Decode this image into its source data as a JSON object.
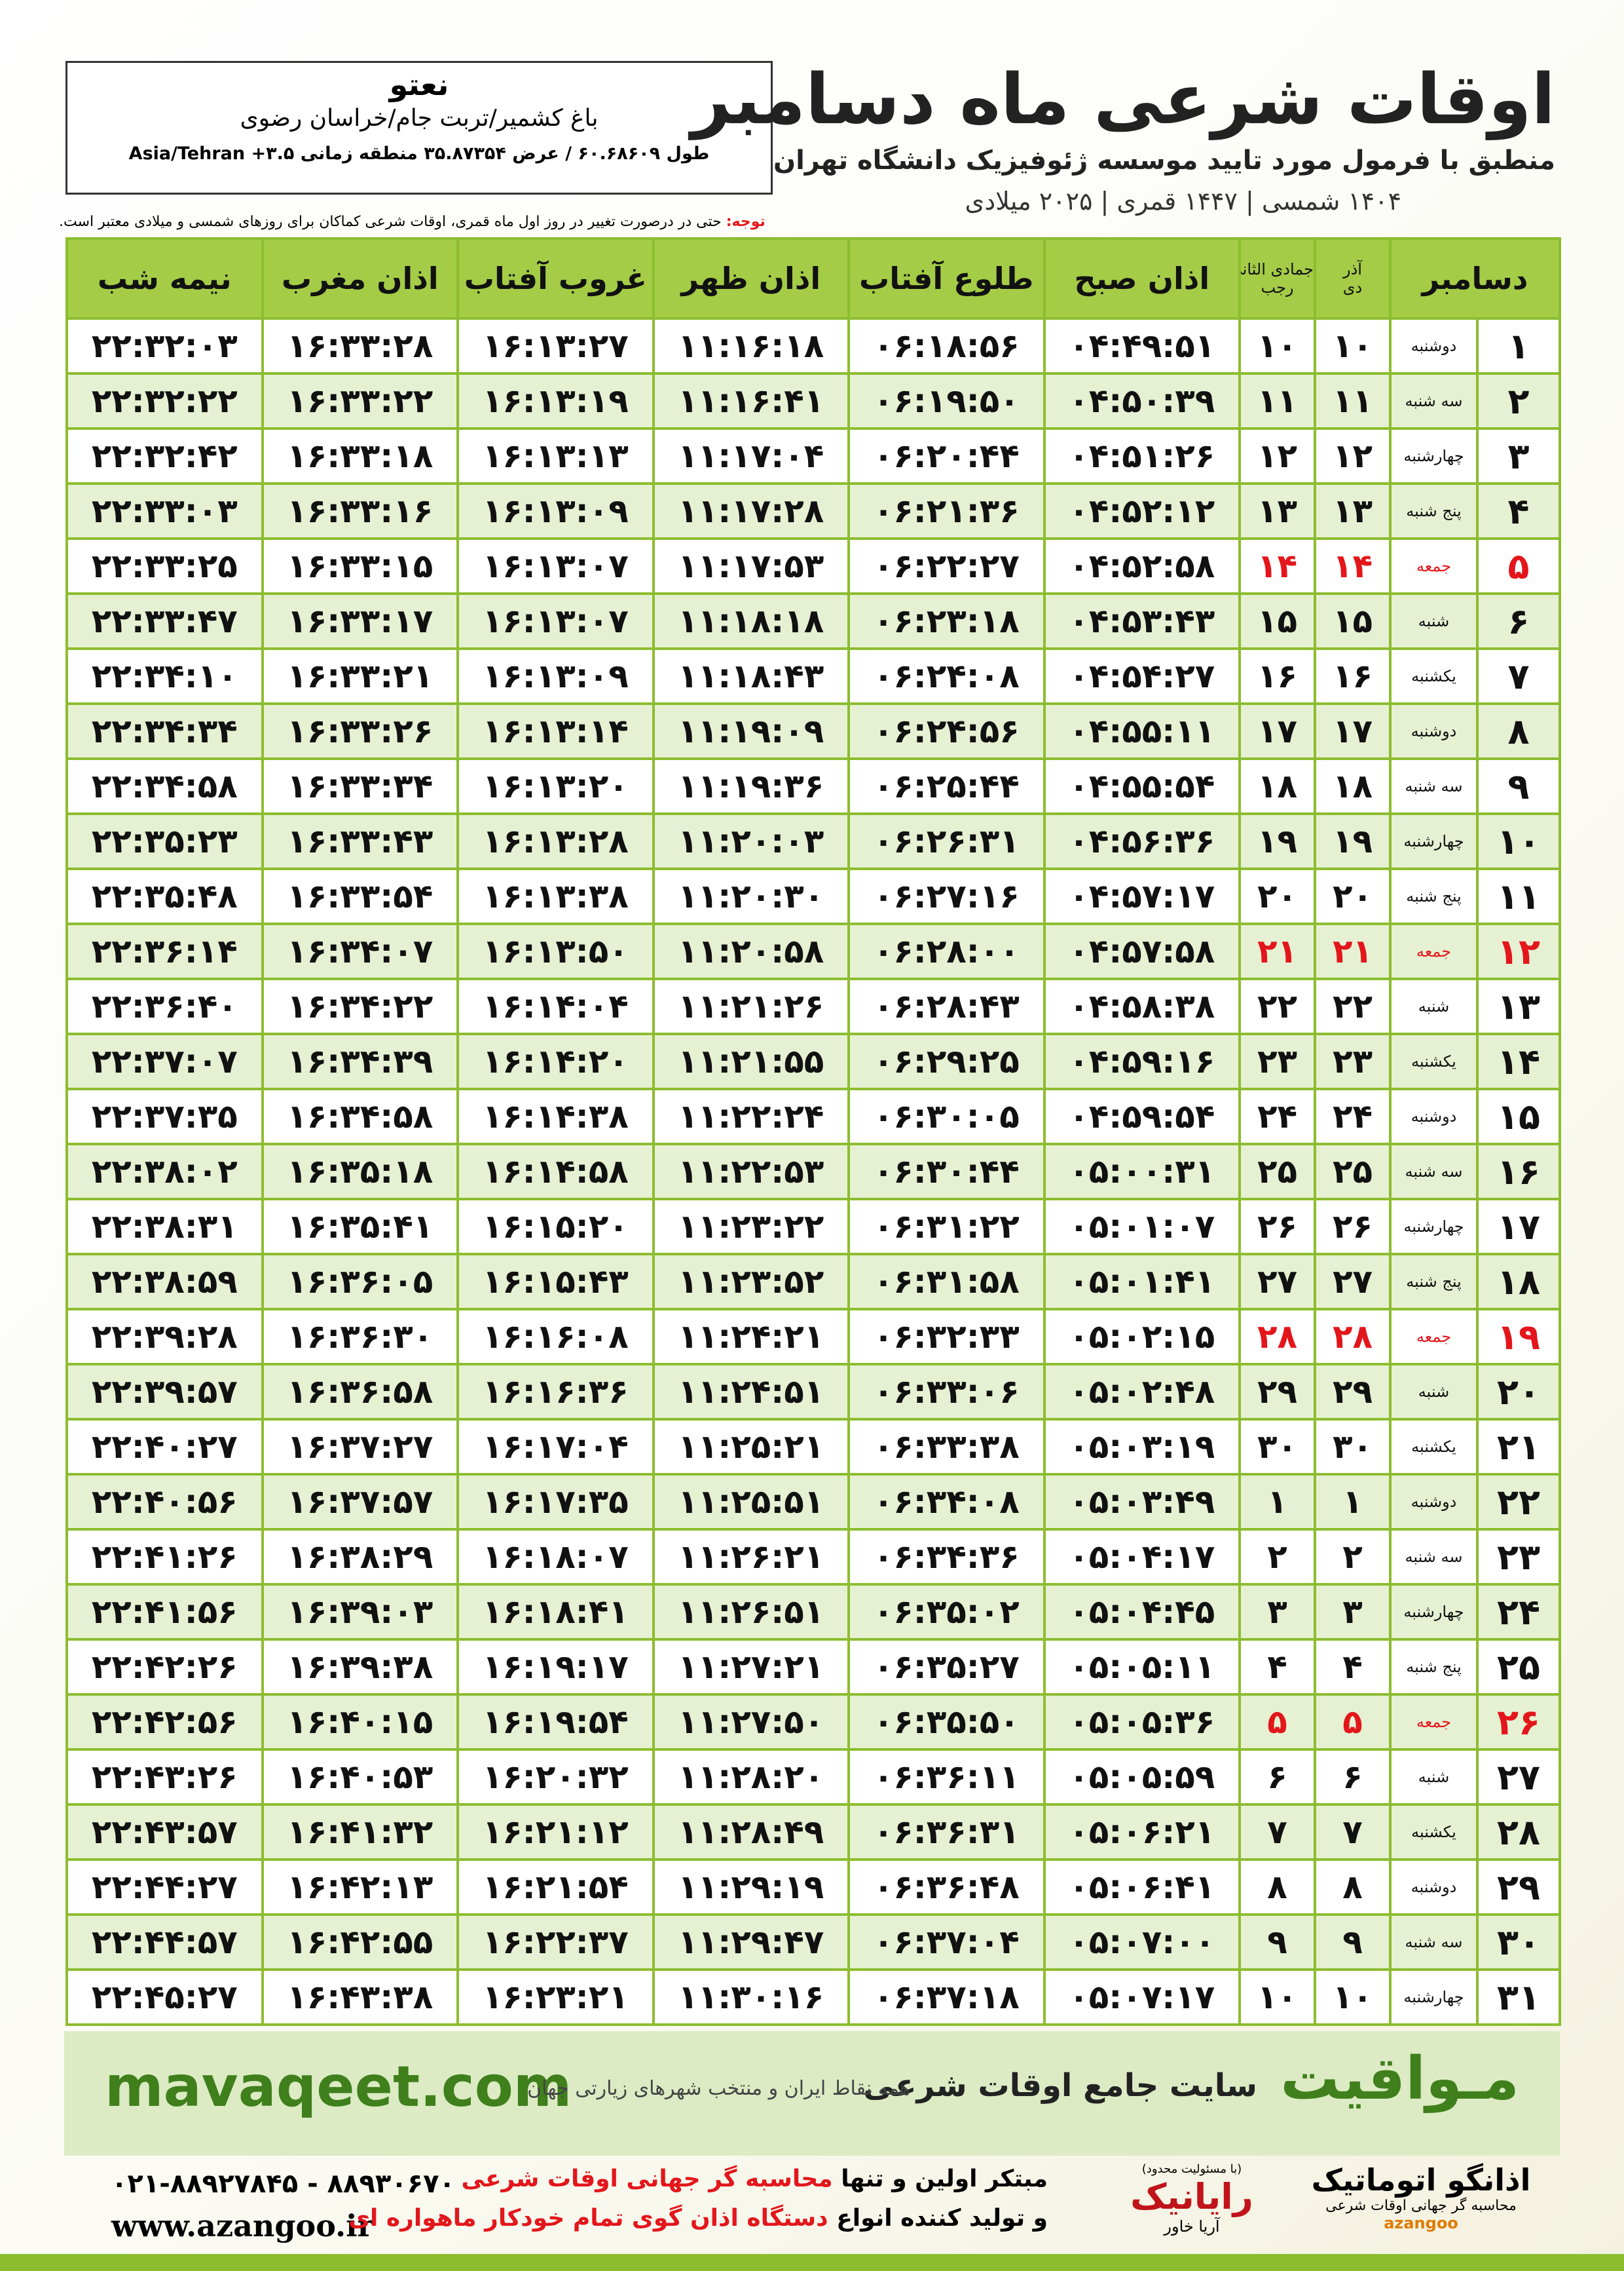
{
  "header": {
    "title": "اوقات شرعی ماه دسامبر",
    "subtitle": "منطبق با فرمول مورد تایید موسسه ژئوفیزیک دانشگاه تهران",
    "dates": "۱۴۰۴ شمسی | ۱۴۴۷ قمری | ۲۰۲۵ میلادی"
  },
  "location": {
    "name": "نعتو",
    "address": "باغ کشمیر/تربت جام/خراسان رضوی",
    "coords": "طول ۶۰.۶۸۶۰۹ / عرض ۳۵.۸۷۳۵۴ منطقه زمانی ۳.۵+ Asia/Tehran"
  },
  "note": {
    "label": "توجه:",
    "text": "حتی در درصورت تغییر در روز اول ماه قمری، اوقات شرعی کماکان برای روزهای شمسی و میلادی معتبر است."
  },
  "table": {
    "columns": {
      "month": "دسامبر",
      "solar": [
        "آذر",
        "دی"
      ],
      "lunar": [
        "جمادی الثانی",
        "رجب"
      ],
      "times": [
        "اذان صبح",
        "طلوع آفتاب",
        "اذان ظهر",
        "غروب آفتاب",
        "اذان مغرب",
        "نیمه شب"
      ]
    },
    "highlight": {
      "weekday": "جمعه",
      "color": "#e3161b"
    },
    "rows": [
      [
        "۱",
        "دوشنبه",
        "۱۰",
        "۱۰",
        "۰۴:۴۹:۵۱",
        "۰۶:۱۸:۵۶",
        "۱۱:۱۶:۱۸",
        "۱۶:۱۳:۲۷",
        "۱۶:۳۳:۲۸",
        "۲۲:۳۲:۰۳"
      ],
      [
        "۲",
        "سه شنبه",
        "۱۱",
        "۱۱",
        "۰۴:۵۰:۳۹",
        "۰۶:۱۹:۵۰",
        "۱۱:۱۶:۴۱",
        "۱۶:۱۳:۱۹",
        "۱۶:۳۳:۲۲",
        "۲۲:۳۲:۲۲"
      ],
      [
        "۳",
        "چهارشنبه",
        "۱۲",
        "۱۲",
        "۰۴:۵۱:۲۶",
        "۰۶:۲۰:۴۴",
        "۱۱:۱۷:۰۴",
        "۱۶:۱۳:۱۳",
        "۱۶:۳۳:۱۸",
        "۲۲:۳۲:۴۲"
      ],
      [
        "۴",
        "پنج شنبه",
        "۱۳",
        "۱۳",
        "۰۴:۵۲:۱۲",
        "۰۶:۲۱:۳۶",
        "۱۱:۱۷:۲۸",
        "۱۶:۱۳:۰۹",
        "۱۶:۳۳:۱۶",
        "۲۲:۳۳:۰۳"
      ],
      [
        "۵",
        "جمعه",
        "۱۴",
        "۱۴",
        "۰۴:۵۲:۵۸",
        "۰۶:۲۲:۲۷",
        "۱۱:۱۷:۵۳",
        "۱۶:۱۳:۰۷",
        "۱۶:۳۳:۱۵",
        "۲۲:۳۳:۲۵"
      ],
      [
        "۶",
        "شنبه",
        "۱۵",
        "۱۵",
        "۰۴:۵۳:۴۳",
        "۰۶:۲۳:۱۸",
        "۱۱:۱۸:۱۸",
        "۱۶:۱۳:۰۷",
        "۱۶:۳۳:۱۷",
        "۲۲:۳۳:۴۷"
      ],
      [
        "۷",
        "یکشنبه",
        "۱۶",
        "۱۶",
        "۰۴:۵۴:۲۷",
        "۰۶:۲۴:۰۸",
        "۱۱:۱۸:۴۳",
        "۱۶:۱۳:۰۹",
        "۱۶:۳۳:۲۱",
        "۲۲:۳۴:۱۰"
      ],
      [
        "۸",
        "دوشنبه",
        "۱۷",
        "۱۷",
        "۰۴:۵۵:۱۱",
        "۰۶:۲۴:۵۶",
        "۱۱:۱۹:۰۹",
        "۱۶:۱۳:۱۴",
        "۱۶:۳۳:۲۶",
        "۲۲:۳۴:۳۴"
      ],
      [
        "۹",
        "سه شنبه",
        "۱۸",
        "۱۸",
        "۰۴:۵۵:۵۴",
        "۰۶:۲۵:۴۴",
        "۱۱:۱۹:۳۶",
        "۱۶:۱۳:۲۰",
        "۱۶:۳۳:۳۴",
        "۲۲:۳۴:۵۸"
      ],
      [
        "۱۰",
        "چهارشنبه",
        "۱۹",
        "۱۹",
        "۰۴:۵۶:۳۶",
        "۰۶:۲۶:۳۱",
        "۱۱:۲۰:۰۳",
        "۱۶:۱۳:۲۸",
        "۱۶:۳۳:۴۳",
        "۲۲:۳۵:۲۳"
      ],
      [
        "۱۱",
        "پنج شنبه",
        "۲۰",
        "۲۰",
        "۰۴:۵۷:۱۷",
        "۰۶:۲۷:۱۶",
        "۱۱:۲۰:۳۰",
        "۱۶:۱۳:۳۸",
        "۱۶:۳۳:۵۴",
        "۲۲:۳۵:۴۸"
      ],
      [
        "۱۲",
        "جمعه",
        "۲۱",
        "۲۱",
        "۰۴:۵۷:۵۸",
        "۰۶:۲۸:۰۰",
        "۱۱:۲۰:۵۸",
        "۱۶:۱۳:۵۰",
        "۱۶:۳۴:۰۷",
        "۲۲:۳۶:۱۴"
      ],
      [
        "۱۳",
        "شنبه",
        "۲۲",
        "۲۲",
        "۰۴:۵۸:۳۸",
        "۰۶:۲۸:۴۳",
        "۱۱:۲۱:۲۶",
        "۱۶:۱۴:۰۴",
        "۱۶:۳۴:۲۲",
        "۲۲:۳۶:۴۰"
      ],
      [
        "۱۴",
        "یکشنبه",
        "۲۳",
        "۲۳",
        "۰۴:۵۹:۱۶",
        "۰۶:۲۹:۲۵",
        "۱۱:۲۱:۵۵",
        "۱۶:۱۴:۲۰",
        "۱۶:۳۴:۳۹",
        "۲۲:۳۷:۰۷"
      ],
      [
        "۱۵",
        "دوشنبه",
        "۲۴",
        "۲۴",
        "۰۴:۵۹:۵۴",
        "۰۶:۳۰:۰۵",
        "۱۱:۲۲:۲۴",
        "۱۶:۱۴:۳۸",
        "۱۶:۳۴:۵۸",
        "۲۲:۳۷:۳۵"
      ],
      [
        "۱۶",
        "سه شنبه",
        "۲۵",
        "۲۵",
        "۰۵:۰۰:۳۱",
        "۰۶:۳۰:۴۴",
        "۱۱:۲۲:۵۳",
        "۱۶:۱۴:۵۸",
        "۱۶:۳۵:۱۸",
        "۲۲:۳۸:۰۲"
      ],
      [
        "۱۷",
        "چهارشنبه",
        "۲۶",
        "۲۶",
        "۰۵:۰۱:۰۷",
        "۰۶:۳۱:۲۲",
        "۱۱:۲۳:۲۲",
        "۱۶:۱۵:۲۰",
        "۱۶:۳۵:۴۱",
        "۲۲:۳۸:۳۱"
      ],
      [
        "۱۸",
        "پنج شنبه",
        "۲۷",
        "۲۷",
        "۰۵:۰۱:۴۱",
        "۰۶:۳۱:۵۸",
        "۱۱:۲۳:۵۲",
        "۱۶:۱۵:۴۳",
        "۱۶:۳۶:۰۵",
        "۲۲:۳۸:۵۹"
      ],
      [
        "۱۹",
        "جمعه",
        "۲۸",
        "۲۸",
        "۰۵:۰۲:۱۵",
        "۰۶:۳۲:۳۳",
        "۱۱:۲۴:۲۱",
        "۱۶:۱۶:۰۸",
        "۱۶:۳۶:۳۰",
        "۲۲:۳۹:۲۸"
      ],
      [
        "۲۰",
        "شنبه",
        "۲۹",
        "۲۹",
        "۰۵:۰۲:۴۸",
        "۰۶:۳۳:۰۶",
        "۱۱:۲۴:۵۱",
        "۱۶:۱۶:۳۶",
        "۱۶:۳۶:۵۸",
        "۲۲:۳۹:۵۷"
      ],
      [
        "۲۱",
        "یکشنبه",
        "۳۰",
        "۳۰",
        "۰۵:۰۳:۱۹",
        "۰۶:۳۳:۳۸",
        "۱۱:۲۵:۲۱",
        "۱۶:۱۷:۰۴",
        "۱۶:۳۷:۲۷",
        "۲۲:۴۰:۲۷"
      ],
      [
        "۲۲",
        "دوشنبه",
        "۱",
        "۱",
        "۰۵:۰۳:۴۹",
        "۰۶:۳۴:۰۸",
        "۱۱:۲۵:۵۱",
        "۱۶:۱۷:۳۵",
        "۱۶:۳۷:۵۷",
        "۲۲:۴۰:۵۶"
      ],
      [
        "۲۳",
        "سه شنبه",
        "۲",
        "۲",
        "۰۵:۰۴:۱۷",
        "۰۶:۳۴:۳۶",
        "۱۱:۲۶:۲۱",
        "۱۶:۱۸:۰۷",
        "۱۶:۳۸:۲۹",
        "۲۲:۴۱:۲۶"
      ],
      [
        "۲۴",
        "چهارشنبه",
        "۳",
        "۳",
        "۰۵:۰۴:۴۵",
        "۰۶:۳۵:۰۲",
        "۱۱:۲۶:۵۱",
        "۱۶:۱۸:۴۱",
        "۱۶:۳۹:۰۳",
        "۲۲:۴۱:۵۶"
      ],
      [
        "۲۵",
        "پنج شنبه",
        "۴",
        "۴",
        "۰۵:۰۵:۱۱",
        "۰۶:۳۵:۲۷",
        "۱۱:۲۷:۲۱",
        "۱۶:۱۹:۱۷",
        "۱۶:۳۹:۳۸",
        "۲۲:۴۲:۲۶"
      ],
      [
        "۲۶",
        "جمعه",
        "۵",
        "۵",
        "۰۵:۰۵:۳۶",
        "۰۶:۳۵:۵۰",
        "۱۱:۲۷:۵۰",
        "۱۶:۱۹:۵۴",
        "۱۶:۴۰:۱۵",
        "۲۲:۴۲:۵۶"
      ],
      [
        "۲۷",
        "شنبه",
        "۶",
        "۶",
        "۰۵:۰۵:۵۹",
        "۰۶:۳۶:۱۱",
        "۱۱:۲۸:۲۰",
        "۱۶:۲۰:۳۲",
        "۱۶:۴۰:۵۳",
        "۲۲:۴۳:۲۶"
      ],
      [
        "۲۸",
        "یکشنبه",
        "۷",
        "۷",
        "۰۵:۰۶:۲۱",
        "۰۶:۳۶:۳۱",
        "۱۱:۲۸:۴۹",
        "۱۶:۲۱:۱۲",
        "۱۶:۴۱:۳۲",
        "۲۲:۴۳:۵۷"
      ],
      [
        "۲۹",
        "دوشنبه",
        "۸",
        "۸",
        "۰۵:۰۶:۴۱",
        "۰۶:۳۶:۴۸",
        "۱۱:۲۹:۱۹",
        "۱۶:۲۱:۵۴",
        "۱۶:۴۲:۱۳",
        "۲۲:۴۴:۲۷"
      ],
      [
        "۳۰",
        "سه شنبه",
        "۹",
        "۹",
        "۰۵:۰۷:۰۰",
        "۰۶:۳۷:۰۴",
        "۱۱:۲۹:۴۷",
        "۱۶:۲۲:۳۷",
        "۱۶:۴۲:۵۵",
        "۲۲:۴۴:۵۷"
      ],
      [
        "۳۱",
        "چهارشنبه",
        "۱۰",
        "۱۰",
        "۰۵:۰۷:۱۷",
        "۰۶:۳۷:۱۸",
        "۱۱:۳۰:۱۶",
        "۱۶:۲۳:۲۱",
        "۱۶:۴۳:۳۸",
        "۲۲:۴۵:۲۷"
      ]
    ]
  },
  "banner": {
    "site": "mavaqeet.com",
    "brand": "مـواقیت",
    "slogan": "سایت جامع اوقات شرعی",
    "tagline": "همه نقاط ایران و منتخب شهرهای زیارتی جهان"
  },
  "footer": {
    "phone": "۰۲۱-۸۸۹۲۷۸۴۵ - ۸۸۹۳۰۶۷۰",
    "web": "www.azangoo.ir",
    "line1": [
      "مبتکر اولین و تنها",
      "محاسبه گر جهانی اوقات شرعی"
    ],
    "line2": [
      "و تولید کننده انواع",
      "دستگاه اذان گوی تمام خودکار ماهواره ای"
    ],
    "logo1": {
      "name": "رایانیک",
      "sub": "آریا خاور",
      "note": "(با مسئولیت محدود)"
    },
    "logo2": {
      "name": "اذانگو اتوماتیک",
      "sub": "محاسبه گر جهانی اوقات شرعی",
      "latin": "azangoo"
    }
  }
}
